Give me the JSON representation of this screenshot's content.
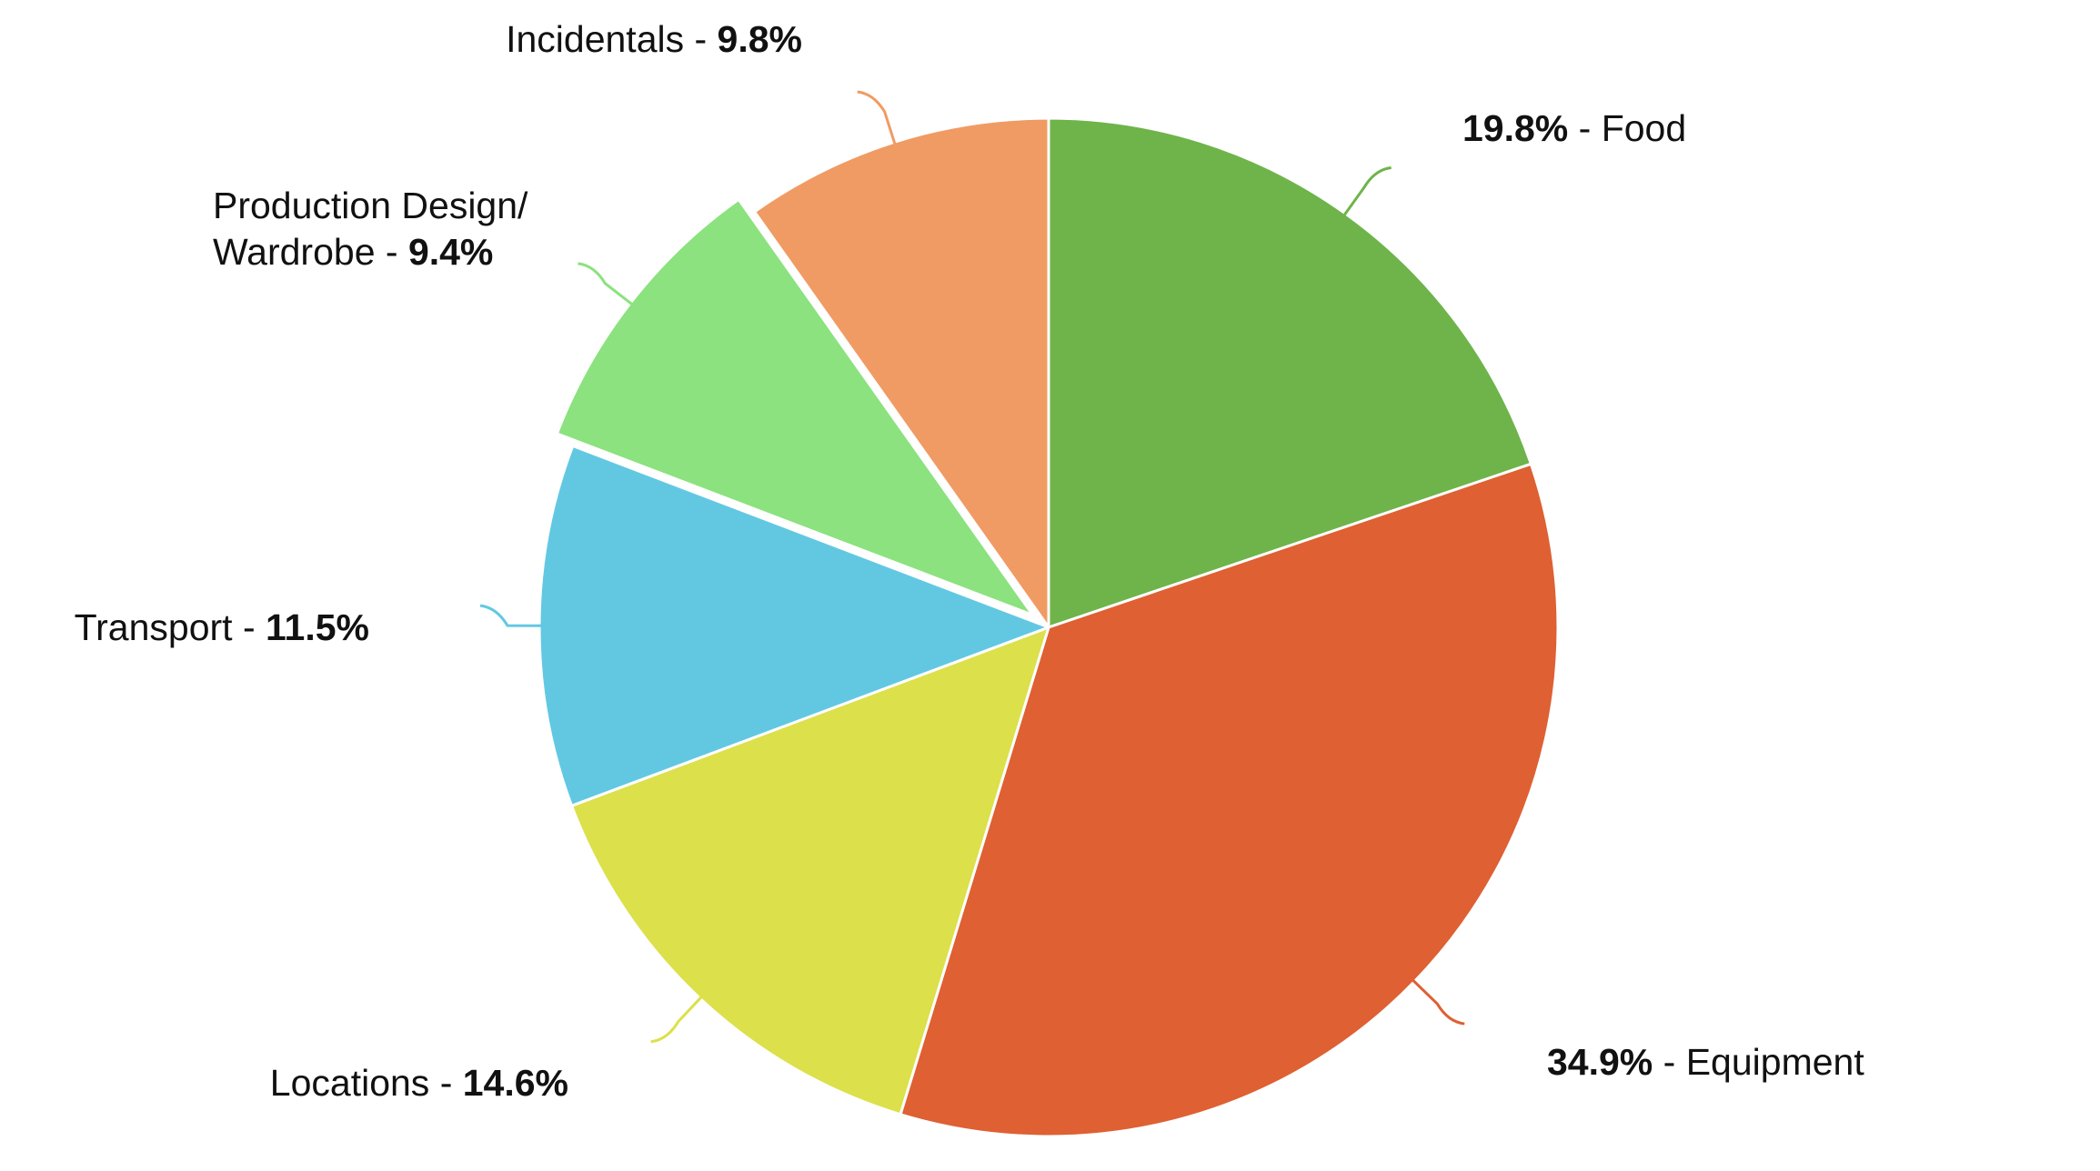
{
  "chart_data": {
    "type": "pie",
    "title": "",
    "unit": "%",
    "start_angle_deg": 0,
    "direction": "clockwise",
    "exploded": [
      "Production Design/ Wardrobe"
    ],
    "slices": [
      {
        "label": "Food",
        "value": 19.8,
        "pct_text": "19.8%",
        "color": "#6eb44a"
      },
      {
        "label": "Equipment",
        "value": 34.9,
        "pct_text": "34.9%",
        "color": "#de6033"
      },
      {
        "label": "Locations",
        "value": 14.6,
        "pct_text": "14.6%",
        "color": "#dce04a"
      },
      {
        "label": "Transport",
        "value": 11.5,
        "pct_text": "11.5%",
        "color": "#62c8e2"
      },
      {
        "label": "Production Design/ Wardrobe",
        "value": 9.4,
        "pct_text": "9.4%",
        "color": "#8be27e"
      },
      {
        "label": "Incidentals",
        "value": 9.8,
        "pct_text": "9.8%",
        "color": "#f09b63"
      }
    ]
  }
}
